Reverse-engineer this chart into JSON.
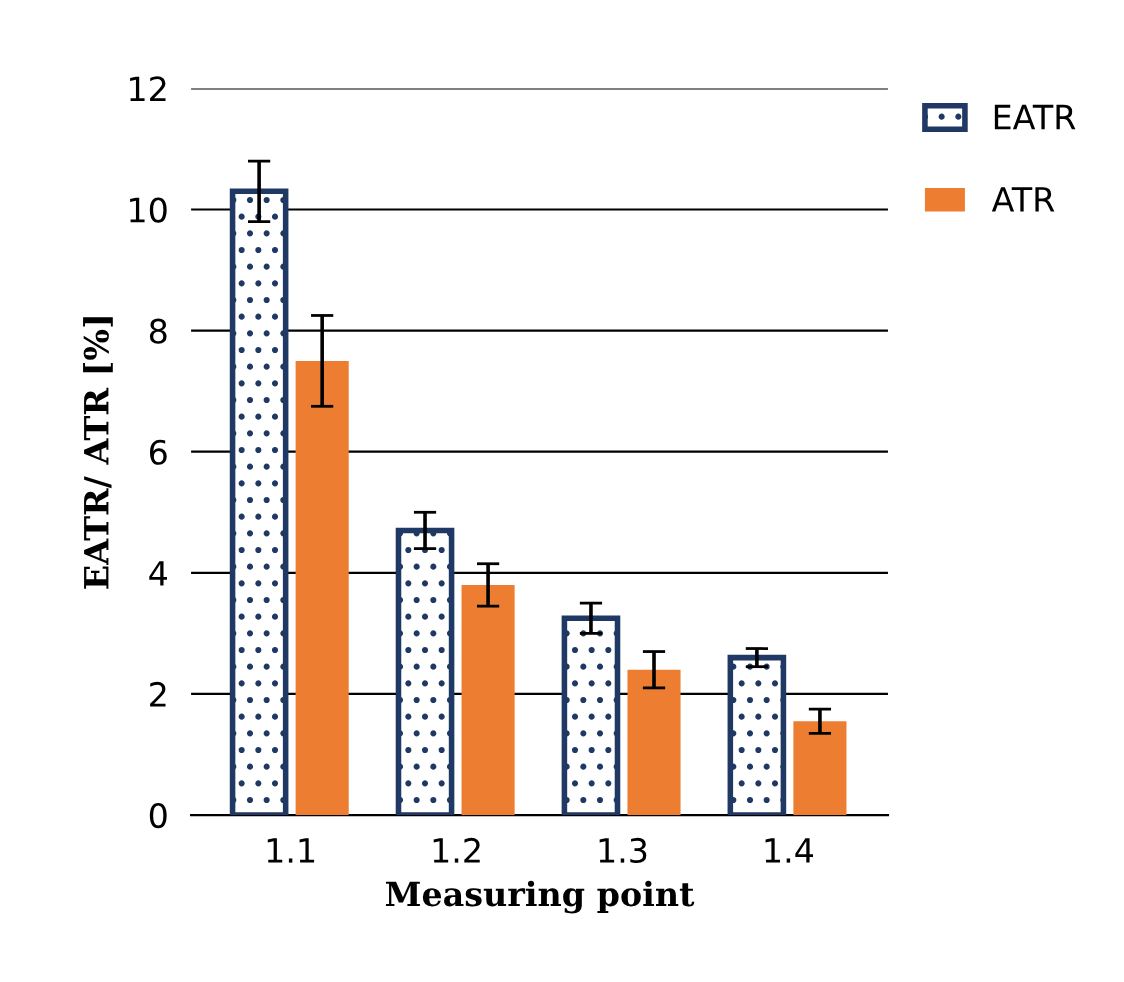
{
  "chart_data": {
    "type": "bar",
    "xlabel": "Measuring point",
    "ylabel": "EATR/ ATR [%]",
    "categories": [
      "1.1",
      "1.2",
      "1.3",
      "1.4"
    ],
    "series": [
      {
        "name": "EATR",
        "color": "#1f3864",
        "values": [
          10.3,
          4.7,
          3.25,
          2.6
        ],
        "errors": [
          0.5,
          0.3,
          0.25,
          0.15
        ]
      },
      {
        "name": "ATR",
        "color": "#ed7d31",
        "values": [
          7.5,
          3.8,
          2.4,
          1.55
        ],
        "errors": [
          0.75,
          0.35,
          0.3,
          0.2
        ]
      }
    ],
    "ylim": [
      0,
      12
    ],
    "yticks": [
      0,
      2,
      4,
      6,
      8,
      10,
      12
    ],
    "grid": "y",
    "legend": "top right"
  }
}
